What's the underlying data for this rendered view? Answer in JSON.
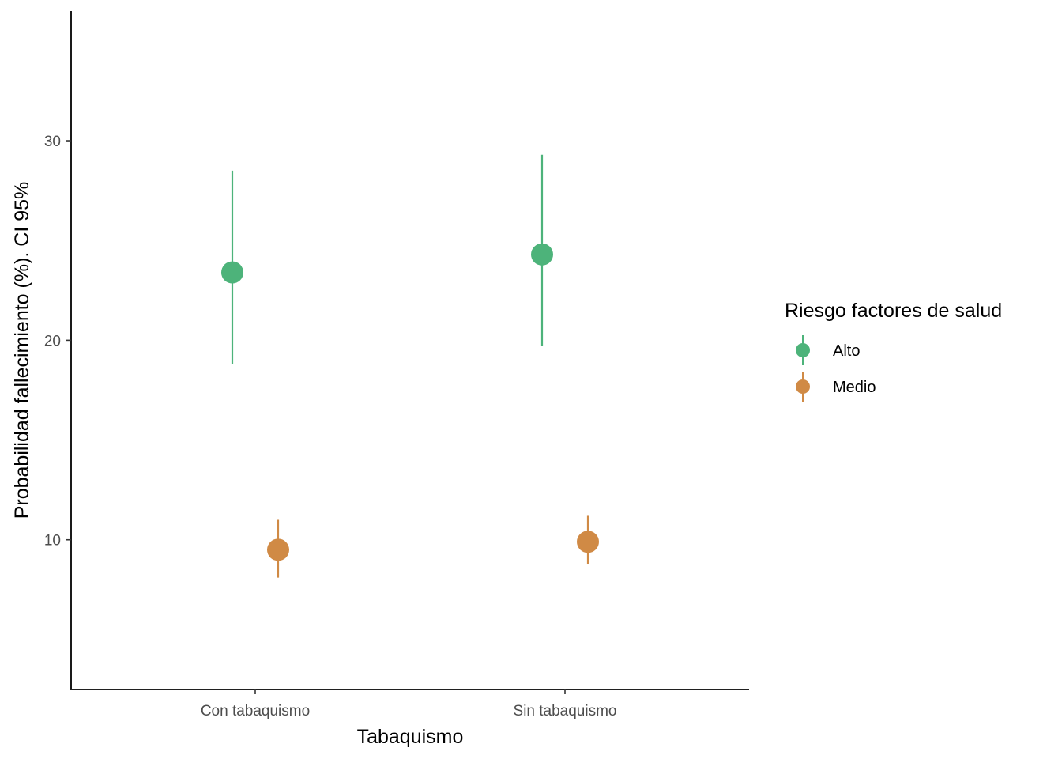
{
  "chart_data": {
    "type": "scatter",
    "subtype": "pointrange",
    "xlabel": "Tabaquismo",
    "ylabel": "Probabilidad fallecimiento (%). CI 95%",
    "categories": [
      "Con tabaquismo",
      "Sin tabaquismo"
    ],
    "ylim": [
      2.5,
      36.5
    ],
    "yticks": [
      10,
      20,
      30
    ],
    "grid": false,
    "legend": {
      "title": "Riesgo factores de salud",
      "position": "right"
    },
    "series": [
      {
        "name": "Alto",
        "color": "#4DB37A",
        "values": [
          23.4,
          24.3
        ],
        "lower": [
          18.8,
          19.7
        ],
        "upper": [
          28.5,
          29.3
        ]
      },
      {
        "name": "Medio",
        "color": "#D08A45",
        "values": [
          9.5,
          9.9
        ],
        "lower": [
          8.1,
          8.8
        ],
        "upper": [
          11.0,
          11.2
        ]
      }
    ]
  }
}
